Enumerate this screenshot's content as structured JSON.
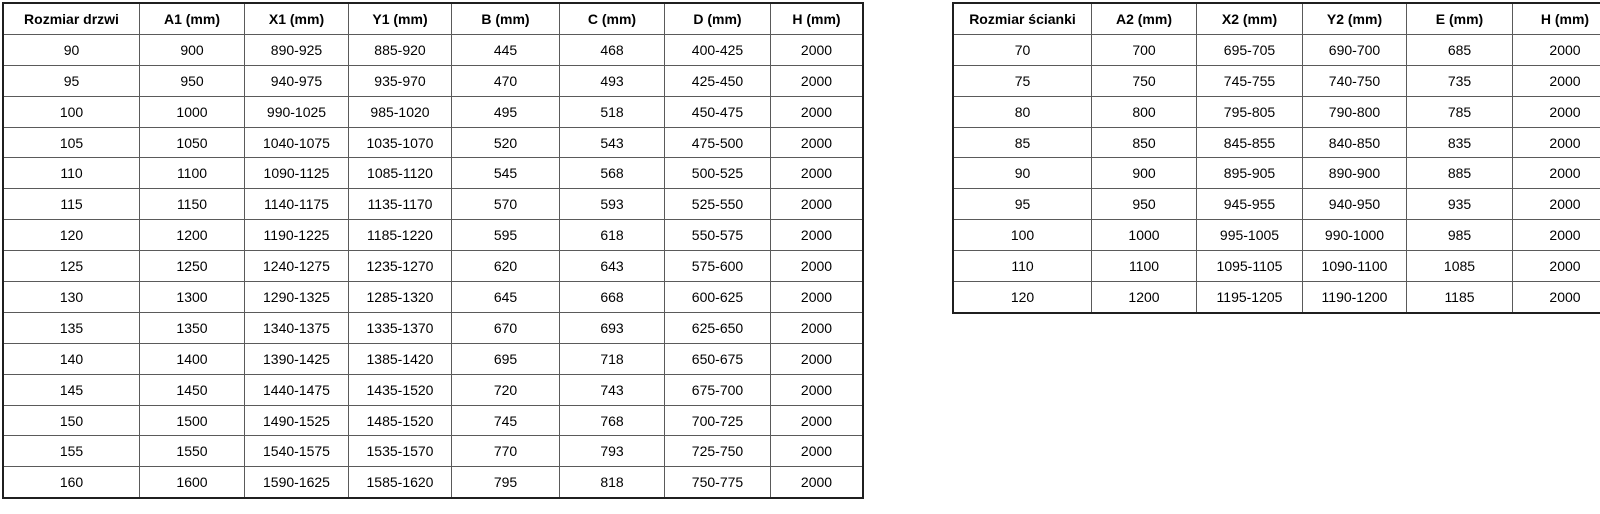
{
  "tables": [
    {
      "id": "door-table",
      "name": "door-size-table",
      "headers": [
        "Rozmiar drzwi",
        "A1 (mm)",
        "X1 (mm)",
        "Y1 (mm)",
        "B (mm)",
        "C (mm)",
        "D (mm)",
        "H (mm)"
      ],
      "rows": [
        [
          "90",
          "900",
          "890-925",
          "885-920",
          "445",
          "468",
          "400-425",
          "2000"
        ],
        [
          "95",
          "950",
          "940-975",
          "935-970",
          "470",
          "493",
          "425-450",
          "2000"
        ],
        [
          "100",
          "1000",
          "990-1025",
          "985-1020",
          "495",
          "518",
          "450-475",
          "2000"
        ],
        [
          "105",
          "1050",
          "1040-1075",
          "1035-1070",
          "520",
          "543",
          "475-500",
          "2000"
        ],
        [
          "110",
          "1100",
          "1090-1125",
          "1085-1120",
          "545",
          "568",
          "500-525",
          "2000"
        ],
        [
          "115",
          "1150",
          "1140-1175",
          "1135-1170",
          "570",
          "593",
          "525-550",
          "2000"
        ],
        [
          "120",
          "1200",
          "1190-1225",
          "1185-1220",
          "595",
          "618",
          "550-575",
          "2000"
        ],
        [
          "125",
          "1250",
          "1240-1275",
          "1235-1270",
          "620",
          "643",
          "575-600",
          "2000"
        ],
        [
          "130",
          "1300",
          "1290-1325",
          "1285-1320",
          "645",
          "668",
          "600-625",
          "2000"
        ],
        [
          "135",
          "1350",
          "1340-1375",
          "1335-1370",
          "670",
          "693",
          "625-650",
          "2000"
        ],
        [
          "140",
          "1400",
          "1390-1425",
          "1385-1420",
          "695",
          "718",
          "650-675",
          "2000"
        ],
        [
          "145",
          "1450",
          "1440-1475",
          "1435-1520",
          "720",
          "743",
          "675-700",
          "2000"
        ],
        [
          "150",
          "1500",
          "1490-1525",
          "1485-1520",
          "745",
          "768",
          "700-725",
          "2000"
        ],
        [
          "155",
          "1550",
          "1540-1575",
          "1535-1570",
          "770",
          "793",
          "725-750",
          "2000"
        ],
        [
          "160",
          "1600",
          "1590-1625",
          "1585-1620",
          "795",
          "818",
          "750-775",
          "2000"
        ]
      ]
    },
    {
      "id": "wall-table",
      "name": "wall-size-table",
      "headers": [
        "Rozmiar ścianki",
        "A2 (mm)",
        "X2 (mm)",
        "Y2 (mm)",
        "E (mm)",
        "H (mm)"
      ],
      "rows": [
        [
          "70",
          "700",
          "695-705",
          "690-700",
          "685",
          "2000"
        ],
        [
          "75",
          "750",
          "745-755",
          "740-750",
          "735",
          "2000"
        ],
        [
          "80",
          "800",
          "795-805",
          "790-800",
          "785",
          "2000"
        ],
        [
          "85",
          "850",
          "845-855",
          "840-850",
          "835",
          "2000"
        ],
        [
          "90",
          "900",
          "895-905",
          "890-900",
          "885",
          "2000"
        ],
        [
          "95",
          "950",
          "945-955",
          "940-950",
          "935",
          "2000"
        ],
        [
          "100",
          "1000",
          "995-1005",
          "990-1000",
          "985",
          "2000"
        ],
        [
          "110",
          "1100",
          "1095-1105",
          "1090-1100",
          "1085",
          "2000"
        ],
        [
          "120",
          "1200",
          "1195-1205",
          "1190-1200",
          "1185",
          "2000"
        ]
      ]
    }
  ]
}
